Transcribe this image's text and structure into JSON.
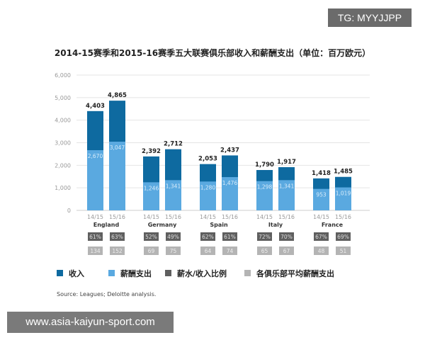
{
  "watermark_top": "TG: MYYJJPP",
  "watermark_bottom": "www.asia-kaiyun-sport.com",
  "source": "Source: Leagues; Deloitte analysis.",
  "colors": {
    "revenue": "#0e6aa0",
    "wages": "#5aa9e0",
    "ratio": "#5f5f5f",
    "avg": "#b4b4b4"
  },
  "chart_data": {
    "type": "bar",
    "title": "2014-15赛季和2015-16赛季五大联赛俱乐部收入和薪酬支出（单位：百万欧元）",
    "ylim": [
      0,
      6000
    ],
    "yticks": [
      "0",
      "1,000",
      "2,000",
      "3,000",
      "4,000",
      "5,000",
      "6,000"
    ],
    "grid": true,
    "legend_position": "bottom",
    "legend": [
      "收入",
      "薪酬支出",
      "薪水/收入比例",
      "各俱乐部平均薪酬支出"
    ],
    "groups": [
      {
        "name": "England",
        "seasons": [
          "14/15",
          "15/16"
        ],
        "revenue": [
          4403,
          4865
        ],
        "revenue_labels": [
          "4,403",
          "4,865"
        ],
        "wages": [
          2670,
          3047
        ],
        "wage_labels": [
          "2,670",
          "3,047"
        ],
        "ratio": [
          "61%",
          "63%"
        ],
        "avg": [
          "134",
          "152"
        ]
      },
      {
        "name": "Germany",
        "seasons": [
          "14/15",
          "15/16"
        ],
        "revenue": [
          2392,
          2712
        ],
        "revenue_labels": [
          "2,392",
          "2,712"
        ],
        "wages": [
          1246,
          1341
        ],
        "wage_labels": [
          "1,246",
          "1,341"
        ],
        "ratio": [
          "52%",
          "49%"
        ],
        "avg": [
          "69",
          "75"
        ]
      },
      {
        "name": "Spain",
        "seasons": [
          "14/15",
          "15/16"
        ],
        "revenue": [
          2053,
          2437
        ],
        "revenue_labels": [
          "2,053",
          "2,437"
        ],
        "wages": [
          1280,
          1476
        ],
        "wage_labels": [
          "1,280",
          "1,476"
        ],
        "ratio": [
          "62%",
          "61%"
        ],
        "avg": [
          "64",
          "74"
        ]
      },
      {
        "name": "Italy",
        "seasons": [
          "14/15",
          "15/16"
        ],
        "revenue": [
          1790,
          1917
        ],
        "revenue_labels": [
          "1,790",
          "1,917"
        ],
        "wages": [
          1298,
          1341
        ],
        "wage_labels": [
          "1,298",
          "1,341"
        ],
        "ratio": [
          "72%",
          "70%"
        ],
        "avg": [
          "65",
          "67"
        ]
      },
      {
        "name": "France",
        "seasons": [
          "14/15",
          "15/16"
        ],
        "revenue": [
          1418,
          1485
        ],
        "revenue_labels": [
          "1,418",
          "1,485"
        ],
        "wages": [
          953,
          1019
        ],
        "wage_labels": [
          "953",
          "1,019"
        ],
        "ratio": [
          "67%",
          "69%"
        ],
        "avg": [
          "48",
          "51"
        ]
      }
    ]
  }
}
